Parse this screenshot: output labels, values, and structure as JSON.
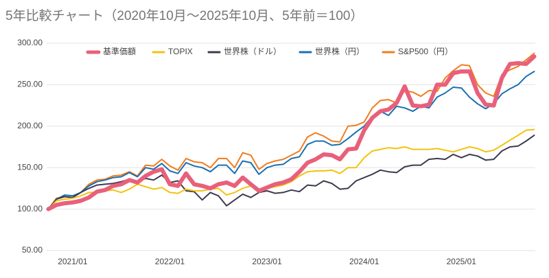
{
  "chart_data": {
    "type": "line",
    "title": "5年比較チャート（2020年10月～2025年10月、5年前＝100）",
    "categories": [
      null,
      null,
      null,
      "2021/01",
      null,
      null,
      null,
      null,
      null,
      null,
      null,
      null,
      null,
      null,
      null,
      "2022/01",
      null,
      null,
      null,
      null,
      null,
      null,
      null,
      null,
      null,
      null,
      null,
      "2023/01",
      null,
      null,
      null,
      null,
      null,
      null,
      null,
      null,
      null,
      null,
      null,
      "2024/01",
      null,
      null,
      null,
      null,
      null,
      null,
      null,
      null,
      null,
      null,
      null,
      "2025/01",
      null,
      null,
      null,
      null,
      null,
      null,
      null,
      null,
      null
    ],
    "ylim": [
      50,
      300
    ],
    "yticks": [
      {
        "value": 50,
        "label": "50.00"
      },
      {
        "value": 100,
        "label": "100.00"
      },
      {
        "value": 150,
        "label": "150.00"
      },
      {
        "value": 200,
        "label": "200.00"
      },
      {
        "value": 250,
        "label": "250.00"
      },
      {
        "value": 300,
        "label": "300.00"
      }
    ],
    "grid": true,
    "legend": "top",
    "series": [
      {
        "name": "基準価額",
        "color": "#e8607a",
        "values": [
          100,
          105,
          107,
          108,
          110,
          114,
          121,
          123,
          128,
          130,
          135,
          132,
          140,
          145,
          148,
          130,
          128,
          143,
          130,
          128,
          125,
          130,
          132,
          128,
          138,
          130,
          122,
          126,
          130,
          132,
          136,
          145,
          156,
          160,
          166,
          165,
          160,
          172,
          173,
          195,
          210,
          218,
          220,
          228,
          248,
          225,
          224,
          226,
          250,
          250,
          264,
          266,
          266,
          240,
          226,
          225,
          258,
          275,
          276,
          275,
          284
        ]
      },
      {
        "name": "TOPIX",
        "color": "#f4c20d",
        "values": [
          100,
          110,
          112,
          113,
          116,
          120,
          120,
          122,
          123,
          120,
          124,
          130,
          127,
          124,
          126,
          120,
          119,
          124,
          122,
          122,
          124,
          125,
          117,
          120,
          125,
          128,
          122,
          125,
          127,
          129,
          133,
          140,
          145,
          146,
          146,
          147,
          143,
          150,
          150,
          162,
          170,
          172,
          174,
          173,
          175,
          172,
          172,
          172,
          173,
          171,
          169,
          172,
          175,
          173,
          169,
          171,
          177,
          183,
          189,
          195,
          196
        ]
      },
      {
        "name": "世界株（ドル）",
        "color": "#3c3a4f",
        "values": [
          100,
          112,
          115,
          114,
          120,
          125,
          129,
          130,
          131,
          133,
          136,
          133,
          137,
          135,
          141,
          132,
          134,
          122,
          121,
          111,
          120,
          116,
          104,
          111,
          118,
          114,
          120,
          122,
          119,
          120,
          123,
          121,
          129,
          128,
          134,
          131,
          124,
          125,
          134,
          138,
          142,
          147,
          145,
          144,
          151,
          153,
          153,
          160,
          161,
          160,
          166,
          162,
          166,
          164,
          159,
          160,
          170,
          175,
          176,
          182,
          189
        ]
      },
      {
        "name": "世界株（円）",
        "color": "#1a6fb0",
        "values": [
          100,
          112,
          117,
          116,
          120,
          128,
          133,
          135,
          138,
          139,
          144,
          139,
          150,
          148,
          155,
          146,
          143,
          156,
          152,
          150,
          145,
          153,
          153,
          143,
          158,
          156,
          142,
          150,
          153,
          154,
          161,
          163,
          178,
          182,
          182,
          177,
          178,
          185,
          193,
          200,
          212,
          218,
          213,
          224,
          222,
          218,
          224,
          222,
          235,
          240,
          247,
          246,
          235,
          227,
          221,
          227,
          239,
          245,
          250,
          260,
          266
        ]
      },
      {
        "name": "S&P500（円）",
        "color": "#f27c1c",
        "values": [
          100,
          113,
          115,
          114,
          120,
          130,
          135,
          136,
          140,
          141,
          145,
          140,
          153,
          152,
          160,
          152,
          147,
          161,
          157,
          156,
          150,
          161,
          161,
          150,
          168,
          165,
          148,
          155,
          158,
          160,
          165,
          170,
          187,
          192,
          188,
          182,
          181,
          200,
          201,
          205,
          222,
          231,
          232,
          228,
          243,
          241,
          236,
          243,
          242,
          258,
          267,
          274,
          273,
          250,
          240,
          236,
          262,
          268,
          272,
          280,
          288
        ]
      }
    ]
  }
}
